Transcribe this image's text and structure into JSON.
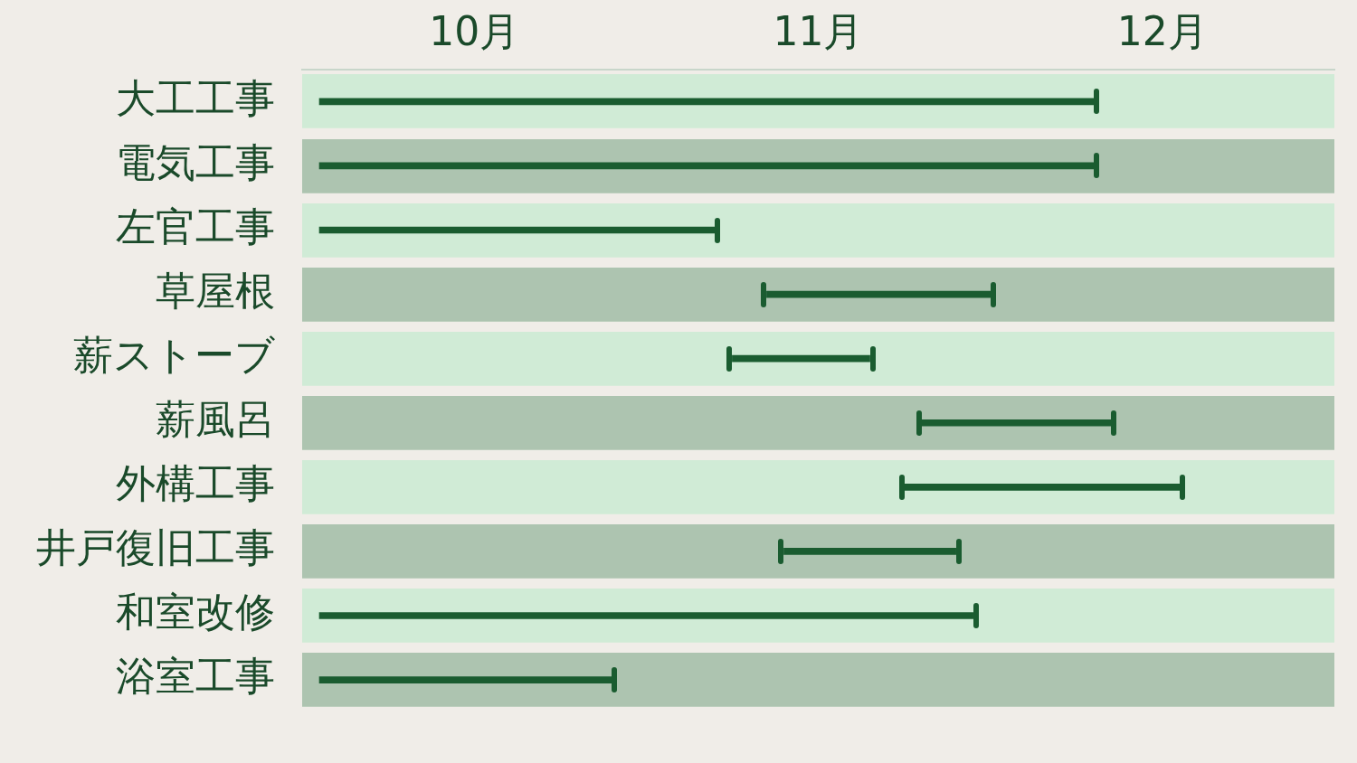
{
  "chart_data": {
    "type": "bar",
    "orientation": "horizontal",
    "categories": [
      "大工工事",
      "電気工事",
      "左官工事",
      "草屋根",
      "薪ストーブ",
      "薪風呂",
      "外構工事",
      "井戸復旧工事",
      "和室改修",
      "浴室工事"
    ],
    "base": [
      9.55,
      9.55,
      9.55,
      10.85,
      10.75,
      11.3,
      11.25,
      10.9,
      9.55,
      9.55
    ],
    "values": [
      2.25,
      2.25,
      1.15,
      0.65,
      0.4,
      0.55,
      0.8,
      0.5,
      1.9,
      0.85
    ],
    "color": "#1a5c30",
    "xlim": [
      9.5,
      12.5
    ],
    "xticks": [
      {
        "value": 10,
        "label": "10月"
      },
      {
        "value": 11,
        "label": "11月"
      },
      {
        "value": 12,
        "label": "12月"
      }
    ],
    "grid": "y",
    "legend": false
  }
}
